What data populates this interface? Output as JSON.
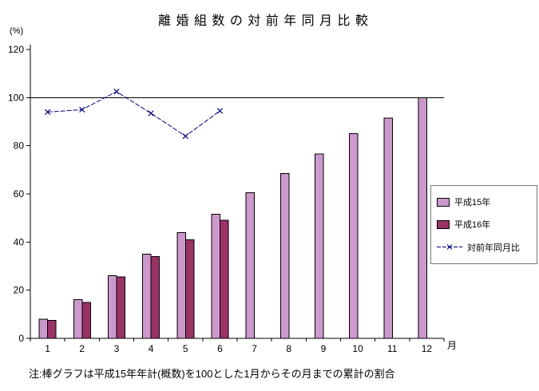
{
  "chart_data": {
    "type": "bar",
    "title": "離 婚 組 数 の 対 前 年 同 月 比 較",
    "y_unit_label": "(%)",
    "x_unit_label": "月",
    "categories": [
      "1",
      "2",
      "3",
      "4",
      "5",
      "6",
      "7",
      "8",
      "9",
      "10",
      "11",
      "12"
    ],
    "ylim": [
      0,
      120
    ],
    "yticks": [
      0,
      20,
      40,
      60,
      80,
      100,
      120
    ],
    "reference_line": 100,
    "grid": "off",
    "legend_position": "middle-right",
    "series": [
      {
        "name": "平成15年",
        "type": "bar",
        "color": "#CC99CC",
        "values": [
          8,
          16,
          26,
          35,
          44,
          51.5,
          60.5,
          68.5,
          76.5,
          85,
          91.5,
          100
        ]
      },
      {
        "name": "平成16年",
        "type": "bar",
        "color": "#993366",
        "values": [
          7.5,
          15,
          25.5,
          34,
          41,
          49,
          null,
          null,
          null,
          null,
          null,
          null
        ]
      },
      {
        "name": "対前年同月比",
        "type": "line",
        "marker": "x",
        "color": "#000080",
        "values": [
          94,
          95,
          102.5,
          93.5,
          84,
          94.5,
          null,
          null,
          null,
          null,
          null,
          null
        ]
      }
    ],
    "note": "注:棒グラフは平成15年年計(概数)を100とした1月からその月までの累計の割合"
  }
}
